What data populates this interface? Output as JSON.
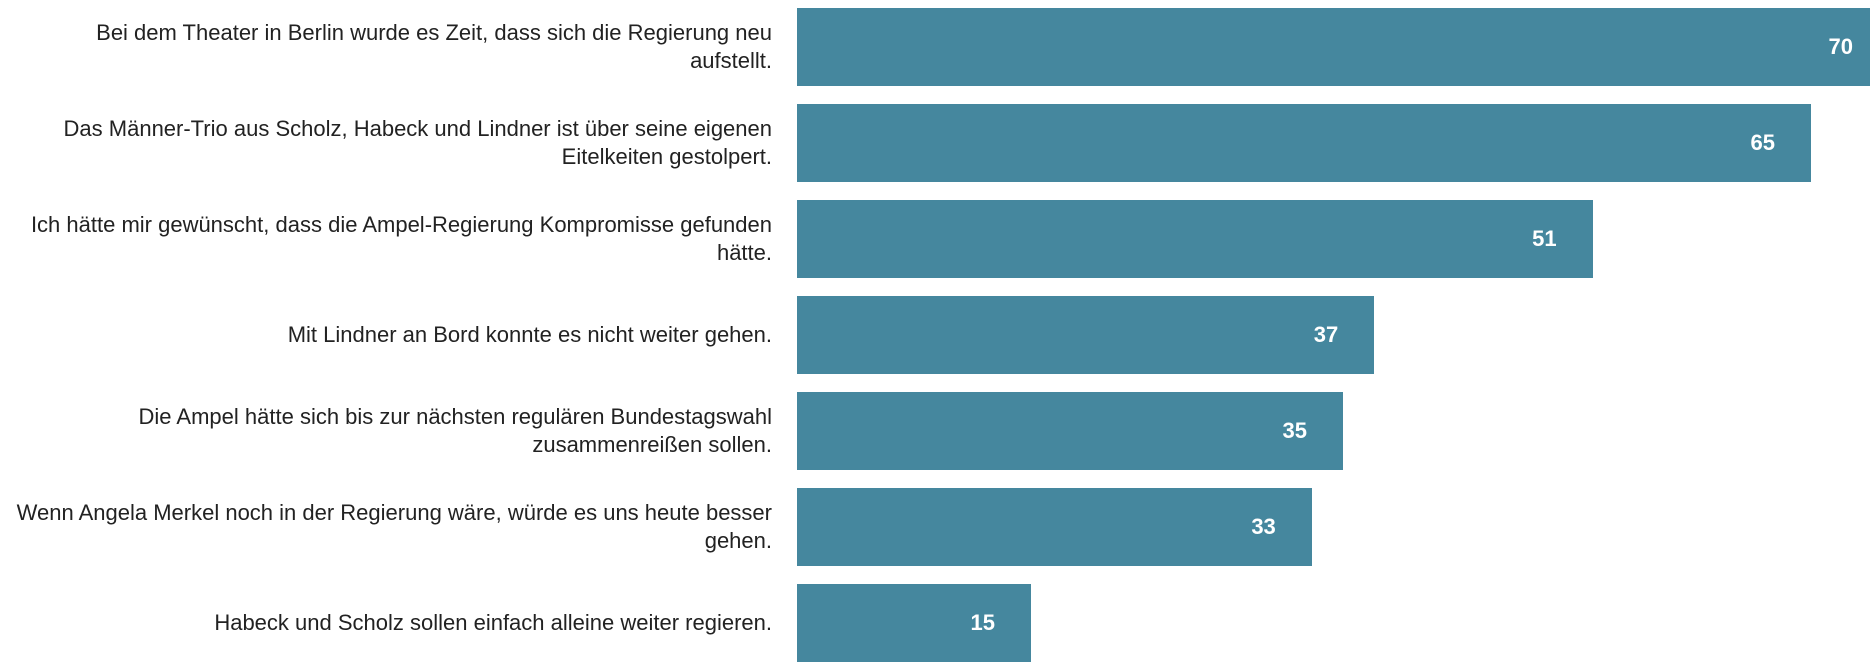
{
  "chart_data": {
    "type": "bar",
    "orientation": "horizontal",
    "categories": [
      "Bei dem Theater in Berlin wurde es Zeit, dass sich die Regierung neu aufstellt.",
      "Das Männer-Trio aus Scholz, Habeck und Lindner ist über seine eigenen Eitelkeiten gestolpert.",
      "Ich hätte mir gewünscht, dass die Ampel-Regierung Kompromisse gefunden hätte.",
      "Mit Lindner an Bord konnte es nicht weiter gehen.",
      "Die Ampel hätte sich bis zur nächsten regulären Bundestagswahl zusammenreißen sollen.",
      "Wenn Angela Merkel noch in der Regierung wäre, würde es uns heute besser gehen.",
      "Habeck und Scholz sollen einfach alleine weiter regieren."
    ],
    "values": [
      70,
      65,
      51,
      37,
      35,
      33,
      15
    ],
    "color": "#45879e"
  }
}
